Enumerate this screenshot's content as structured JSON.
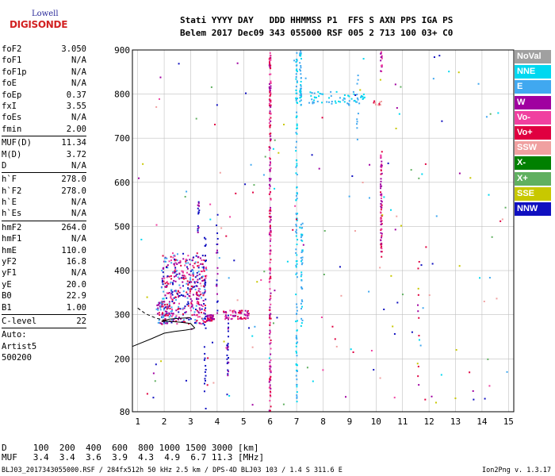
{
  "logo": {
    "line1": "Lowell",
    "line2": "DIGISONDE"
  },
  "header": {
    "line1": "Stati YYYY DAY   DDD HHMMSS P1  FFS S AXN PPS IGA PS",
    "line2": "Belem 2017 Dec09 343 055000 RSF 005 2 713 100 03+ C0"
  },
  "params": [
    {
      "name": "foF2",
      "value": "3.050"
    },
    {
      "name": "foF1",
      "value": "N/A"
    },
    {
      "name": "foF1p",
      "value": "N/A"
    },
    {
      "name": "foE",
      "value": "N/A"
    },
    {
      "name": "foEp",
      "value": "0.37"
    },
    {
      "name": "fxI",
      "value": "3.55"
    },
    {
      "name": "foEs",
      "value": "N/A"
    },
    {
      "name": "fmin",
      "value": "2.00"
    },
    {
      "sep": true
    },
    {
      "name": "MUF(D)",
      "value": "11.34"
    },
    {
      "name": "M(D)",
      "value": "3.72"
    },
    {
      "name": "D",
      "value": "N/A"
    },
    {
      "sep": true
    },
    {
      "name": "h`F",
      "value": "278.0"
    },
    {
      "name": "h`F2",
      "value": "278.0"
    },
    {
      "name": "h`E",
      "value": "N/A"
    },
    {
      "name": "h`Es",
      "value": "N/A"
    },
    {
      "sep": true
    },
    {
      "name": "hmF2",
      "value": "264.0"
    },
    {
      "name": "hmF1",
      "value": "N/A"
    },
    {
      "name": "hmE",
      "value": "110.0"
    },
    {
      "name": "yF2",
      "value": "16.8"
    },
    {
      "name": "yF1",
      "value": "N/A"
    },
    {
      "name": "yE",
      "value": "20.0"
    },
    {
      "name": "B0",
      "value": "22.9"
    },
    {
      "name": "B1",
      "value": "1.00"
    },
    {
      "sep": true
    },
    {
      "name": "C-level",
      "value": "22"
    },
    {
      "sep": true
    },
    {
      "name": "Auto:",
      "value": ""
    },
    {
      "name": "Artist5",
      "value": ""
    },
    {
      "name": "500200",
      "value": ""
    }
  ],
  "legend": [
    {
      "label": "NoVal",
      "color": "#a0a0a0"
    },
    {
      "label": "NNE",
      "color": "#00d8f0"
    },
    {
      "label": "E",
      "color": "#40a8f0"
    },
    {
      "label": "W",
      "color": "#a000a0"
    },
    {
      "label": "Vo-",
      "color": "#f040a0"
    },
    {
      "label": "Vo+",
      "color": "#e00040"
    },
    {
      "label": "SSW",
      "color": "#f0a0a0"
    },
    {
      "label": "X-",
      "color": "#008000"
    },
    {
      "label": "X+",
      "color": "#60b060"
    },
    {
      "label": "SSE",
      "color": "#c8c800"
    },
    {
      "label": "NNW",
      "color": "#1010c0"
    }
  ],
  "chart_data": {
    "type": "scatter",
    "xlim": [
      0.8,
      15.2
    ],
    "ylim": [
      80,
      900
    ],
    "xticks": [
      "1",
      "2",
      "3",
      "4",
      "5",
      "6",
      "7",
      "8",
      "9",
      "10",
      "11",
      "12",
      "13",
      "14",
      "15"
    ],
    "yticks": [
      "80",
      "200",
      "300",
      "400",
      "500",
      "600",
      "700",
      "800",
      "900"
    ],
    "grid": true,
    "trace_x": [
      0.8,
      1.5,
      2.0,
      2.4,
      2.8,
      3.1,
      3.15,
      3.0,
      2.6,
      2.2,
      1.9,
      2.2,
      2.6,
      3.0
    ],
    "trace_y": [
      228,
      245,
      258,
      262,
      265,
      268,
      270,
      280,
      283,
      285,
      285,
      290,
      292,
      293
    ],
    "dashed_x": [
      1.0,
      1.3,
      1.7,
      2.0
    ],
    "dashed_y": [
      315,
      302,
      292,
      288
    ]
  },
  "bottom": {
    "d_line": "D     100  200  400  600  800 1000 1500 3000 [km]",
    "muf_line": "MUF   3.4  3.4  3.6  3.9  4.3  4.9  6.7 11.3 [MHz]"
  },
  "footer": {
    "file": "BLJ03_2017343055000.RSF / 284fx512h 50 kHz 2.5 km / DPS-4D BLJ03 103 / 1.4 S 311.6 E",
    "version": "Ion2Png v. 1.3.17"
  }
}
